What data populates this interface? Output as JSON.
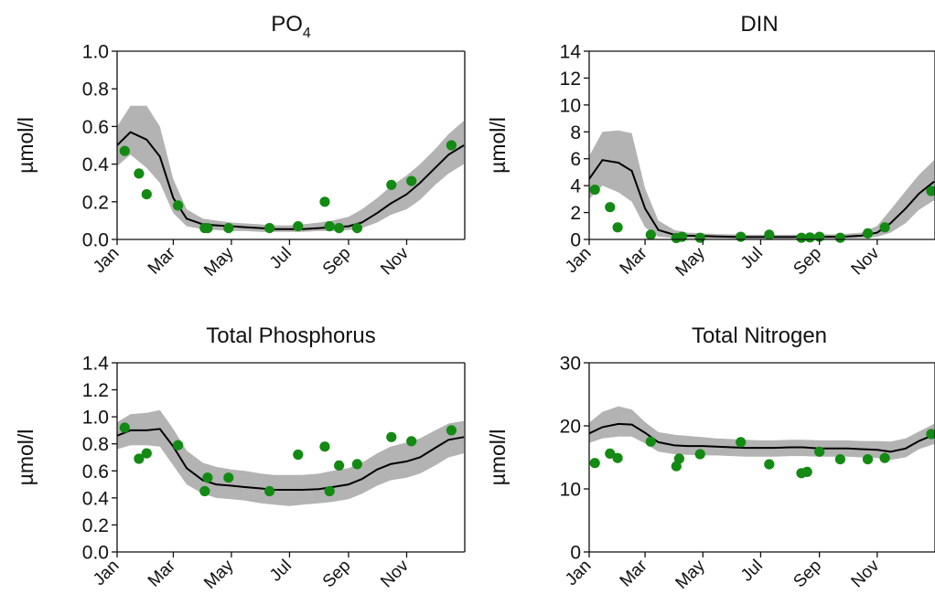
{
  "colors": {
    "band": "#b3b3b3",
    "line": "#000000",
    "points": "#138a13",
    "axis": "#111111"
  },
  "chart_data": [
    {
      "type": "line",
      "title": "PO",
      "title_sub": "4",
      "ylabel": "µmol/l",
      "ylim": [
        0,
        1.0
      ],
      "yticks": [
        "0.0",
        "0.2",
        "0.4",
        "0.6",
        "0.8",
        "1.0"
      ],
      "xticks": [
        "Jan",
        "Mar",
        "May",
        "Jul",
        "Sep",
        "Nov"
      ],
      "grid": false,
      "x": [
        "Jan 1",
        "Jan 15",
        "Feb 1",
        "Feb 15",
        "Mar 1",
        "Mar 15",
        "Apr 1",
        "Apr 15",
        "May 1",
        "May 15",
        "Jun 1",
        "Jun 15",
        "Jul 1",
        "Jul 15",
        "Aug 1",
        "Aug 15",
        "Sep 1",
        "Sep 15",
        "Oct 1",
        "Oct 15",
        "Nov 1",
        "Nov 15",
        "Dec 1",
        "Dec 15",
        "Dec 31"
      ],
      "series": [
        {
          "role": "mean",
          "values": [
            0.5,
            0.57,
            0.53,
            0.44,
            0.22,
            0.11,
            0.08,
            0.075,
            0.07,
            0.065,
            0.06,
            0.055,
            0.055,
            0.055,
            0.06,
            0.065,
            0.07,
            0.09,
            0.14,
            0.19,
            0.24,
            0.3,
            0.38,
            0.45,
            0.5
          ]
        },
        {
          "role": "upper",
          "values": [
            0.6,
            0.71,
            0.71,
            0.6,
            0.32,
            0.16,
            0.11,
            0.1,
            0.09,
            0.085,
            0.08,
            0.075,
            0.075,
            0.08,
            0.09,
            0.1,
            0.12,
            0.16,
            0.22,
            0.28,
            0.34,
            0.4,
            0.48,
            0.56,
            0.63
          ]
        },
        {
          "role": "lower",
          "values": [
            0.39,
            0.45,
            0.38,
            0.3,
            0.14,
            0.07,
            0.055,
            0.05,
            0.045,
            0.045,
            0.04,
            0.04,
            0.04,
            0.04,
            0.045,
            0.045,
            0.05,
            0.06,
            0.09,
            0.13,
            0.16,
            0.21,
            0.29,
            0.35,
            0.4
          ]
        }
      ],
      "observations": [
        [
          "Jan 9",
          0.47
        ],
        [
          "Jan 24",
          0.35
        ],
        [
          "Feb 1",
          0.24
        ],
        [
          "Mar 6",
          0.18
        ],
        [
          "Apr 3",
          0.06
        ],
        [
          "Apr 6",
          0.06
        ],
        [
          "Apr 28",
          0.06
        ],
        [
          "Jun 10",
          0.06
        ],
        [
          "Jul 10",
          0.07
        ],
        [
          "Aug 7",
          0.2
        ],
        [
          "Aug 12",
          0.07
        ],
        [
          "Aug 22",
          0.06
        ],
        [
          "Sep 10",
          0.06
        ],
        [
          "Oct 16",
          0.29
        ],
        [
          "Nov 6",
          0.31
        ],
        [
          "Dec 18",
          0.5
        ]
      ]
    },
    {
      "type": "line",
      "title": "DIN",
      "ylabel": "µmol/l",
      "ylim": [
        0,
        14
      ],
      "yticks": [
        "0",
        "2",
        "4",
        "6",
        "8",
        "10",
        "12",
        "14"
      ],
      "xticks": [
        "Jan",
        "Mar",
        "May",
        "Jul",
        "Sep",
        "Nov"
      ],
      "grid": false,
      "x": [
        "Jan 1",
        "Jan 15",
        "Feb 1",
        "Feb 15",
        "Mar 1",
        "Mar 15",
        "Apr 1",
        "Apr 15",
        "May 1",
        "May 15",
        "Jun 1",
        "Jun 15",
        "Jul 1",
        "Jul 15",
        "Aug 1",
        "Aug 15",
        "Sep 1",
        "Sep 15",
        "Oct 1",
        "Oct 15",
        "Nov 1",
        "Nov 15",
        "Dec 1",
        "Dec 15",
        "Dec 31"
      ],
      "series": [
        {
          "role": "mean",
          "values": [
            4.5,
            5.9,
            5.7,
            5.1,
            2.3,
            0.7,
            0.35,
            0.28,
            0.25,
            0.22,
            0.2,
            0.18,
            0.18,
            0.18,
            0.18,
            0.2,
            0.2,
            0.2,
            0.22,
            0.28,
            0.5,
            1.2,
            2.3,
            3.4,
            4.3
          ]
        },
        {
          "role": "upper",
          "values": [
            6.2,
            8.0,
            8.1,
            7.9,
            3.8,
            1.4,
            0.7,
            0.5,
            0.45,
            0.4,
            0.38,
            0.35,
            0.35,
            0.35,
            0.35,
            0.38,
            0.38,
            0.38,
            0.42,
            0.5,
            1.0,
            2.2,
            3.6,
            4.8,
            5.9
          ]
        },
        {
          "role": "lower",
          "values": [
            3.0,
            4.0,
            3.5,
            2.8,
            0.9,
            0.2,
            0.1,
            0.08,
            0.07,
            0.07,
            0.06,
            0.06,
            0.06,
            0.06,
            0.06,
            0.06,
            0.06,
            0.06,
            0.07,
            0.08,
            0.2,
            0.5,
            1.2,
            2.2,
            2.9
          ]
        }
      ],
      "observations": [
        [
          "Jan 7",
          3.7
        ],
        [
          "Jan 23",
          2.4
        ],
        [
          "Jan 31",
          0.9
        ],
        [
          "Mar 7",
          0.35
        ],
        [
          "Apr 3",
          0.1
        ],
        [
          "Apr 9",
          0.2
        ],
        [
          "Apr 28",
          0.12
        ],
        [
          "Jun 10",
          0.2
        ],
        [
          "Jul 10",
          0.35
        ],
        [
          "Aug 13",
          0.12
        ],
        [
          "Aug 22",
          0.15
        ],
        [
          "Sep 1",
          0.2
        ],
        [
          "Sep 23",
          0.12
        ],
        [
          "Oct 22",
          0.45
        ],
        [
          "Nov 9",
          0.9
        ],
        [
          "Dec 28",
          3.6
        ]
      ]
    },
    {
      "type": "line",
      "title": "Total Phosphorus",
      "ylabel": "µmol/l",
      "ylim": [
        0,
        1.4
      ],
      "yticks": [
        "0.0",
        "0.2",
        "0.4",
        "0.6",
        "0.8",
        "1.0",
        "1.2",
        "1.4"
      ],
      "xticks": [
        "Jan",
        "Mar",
        "May",
        "Jul",
        "Sep",
        "Nov"
      ],
      "grid": false,
      "x": [
        "Jan 1",
        "Jan 15",
        "Feb 1",
        "Feb 15",
        "Mar 1",
        "Mar 15",
        "Apr 1",
        "Apr 15",
        "May 1",
        "May 15",
        "Jun 1",
        "Jun 15",
        "Jul 1",
        "Jul 15",
        "Aug 1",
        "Aug 15",
        "Sep 1",
        "Sep 15",
        "Oct 1",
        "Oct 15",
        "Nov 1",
        "Nov 15",
        "Dec 1",
        "Dec 15",
        "Dec 31"
      ],
      "series": [
        {
          "role": "mean",
          "values": [
            0.86,
            0.9,
            0.9,
            0.91,
            0.78,
            0.62,
            0.53,
            0.5,
            0.49,
            0.48,
            0.47,
            0.46,
            0.46,
            0.46,
            0.465,
            0.48,
            0.5,
            0.54,
            0.61,
            0.65,
            0.67,
            0.7,
            0.77,
            0.83,
            0.85
          ]
        },
        {
          "role": "upper",
          "values": [
            0.96,
            1.02,
            1.03,
            1.05,
            0.91,
            0.75,
            0.66,
            0.63,
            0.61,
            0.6,
            0.58,
            0.57,
            0.57,
            0.57,
            0.58,
            0.6,
            0.62,
            0.66,
            0.73,
            0.78,
            0.81,
            0.84,
            0.9,
            0.95,
            0.97
          ]
        },
        {
          "role": "lower",
          "values": [
            0.76,
            0.79,
            0.79,
            0.78,
            0.64,
            0.5,
            0.43,
            0.4,
            0.39,
            0.38,
            0.36,
            0.35,
            0.34,
            0.35,
            0.36,
            0.37,
            0.39,
            0.43,
            0.49,
            0.53,
            0.55,
            0.58,
            0.64,
            0.7,
            0.73
          ]
        }
      ],
      "observations": [
        [
          "Jan 9",
          0.92
        ],
        [
          "Jan 24",
          0.69
        ],
        [
          "Feb 1",
          0.73
        ],
        [
          "Mar 6",
          0.79
        ],
        [
          "Apr 3",
          0.45
        ],
        [
          "Apr 6",
          0.55
        ],
        [
          "Apr 28",
          0.55
        ],
        [
          "Jun 10",
          0.45
        ],
        [
          "Jul 10",
          0.72
        ],
        [
          "Aug 7",
          0.78
        ],
        [
          "Aug 12",
          0.45
        ],
        [
          "Aug 22",
          0.64
        ],
        [
          "Sep 10",
          0.65
        ],
        [
          "Oct 16",
          0.85
        ],
        [
          "Nov 6",
          0.82
        ],
        [
          "Dec 18",
          0.9
        ]
      ]
    },
    {
      "type": "line",
      "title": "Total Nitrogen",
      "ylabel": "µmol/l",
      "ylim": [
        0,
        30
      ],
      "yticks": [
        "0",
        "10",
        "20",
        "30"
      ],
      "xticks": [
        "Jan",
        "Mar",
        "May",
        "Jul",
        "Sep",
        "Nov"
      ],
      "grid": false,
      "x": [
        "Jan 1",
        "Jan 15",
        "Feb 1",
        "Feb 15",
        "Mar 1",
        "Mar 15",
        "Apr 1",
        "Apr 15",
        "May 1",
        "May 15",
        "Jun 1",
        "Jun 15",
        "Jul 1",
        "Jul 15",
        "Aug 1",
        "Aug 15",
        "Sep 1",
        "Sep 15",
        "Oct 1",
        "Oct 15",
        "Nov 1",
        "Nov 15",
        "Dec 1",
        "Dec 15",
        "Dec 31"
      ],
      "series": [
        {
          "role": "mean",
          "values": [
            18.8,
            19.8,
            20.3,
            20.2,
            18.9,
            17.4,
            16.9,
            16.8,
            16.8,
            16.7,
            16.6,
            16.5,
            16.5,
            16.5,
            16.6,
            16.6,
            16.4,
            16.4,
            16.4,
            16.3,
            16.2,
            15.9,
            16.4,
            17.6,
            18.6
          ]
        },
        {
          "role": "upper",
          "values": [
            20.5,
            22.2,
            23.1,
            22.6,
            20.6,
            19.0,
            18.6,
            18.4,
            18.2,
            18.0,
            17.9,
            17.8,
            17.7,
            17.7,
            17.8,
            17.8,
            17.7,
            17.7,
            17.7,
            17.6,
            17.6,
            17.5,
            18.0,
            19.1,
            20.3
          ]
        },
        {
          "role": "lower",
          "values": [
            17.3,
            18.0,
            18.3,
            18.3,
            17.2,
            15.9,
            15.5,
            15.4,
            15.3,
            15.3,
            15.2,
            15.1,
            15.1,
            15.1,
            15.2,
            15.2,
            15.1,
            15.1,
            15.1,
            15.0,
            14.9,
            14.6,
            15.0,
            16.3,
            17.1
          ]
        }
      ],
      "observations": [
        [
          "Jan 7",
          14.1
        ],
        [
          "Jan 23",
          15.6
        ],
        [
          "Jan 31",
          14.9
        ],
        [
          "Mar 7",
          17.5
        ],
        [
          "Apr 3",
          13.6
        ],
        [
          "Apr 6",
          14.8
        ],
        [
          "Apr 28",
          15.5
        ],
        [
          "Jun 10",
          17.4
        ],
        [
          "Jul 10",
          13.9
        ],
        [
          "Aug 13",
          12.5
        ],
        [
          "Aug 19",
          12.7
        ],
        [
          "Sep 1",
          15.9
        ],
        [
          "Sep 23",
          14.7
        ],
        [
          "Oct 22",
          14.7
        ],
        [
          "Nov 9",
          14.9
        ],
        [
          "Dec 28",
          18.7
        ]
      ]
    }
  ]
}
